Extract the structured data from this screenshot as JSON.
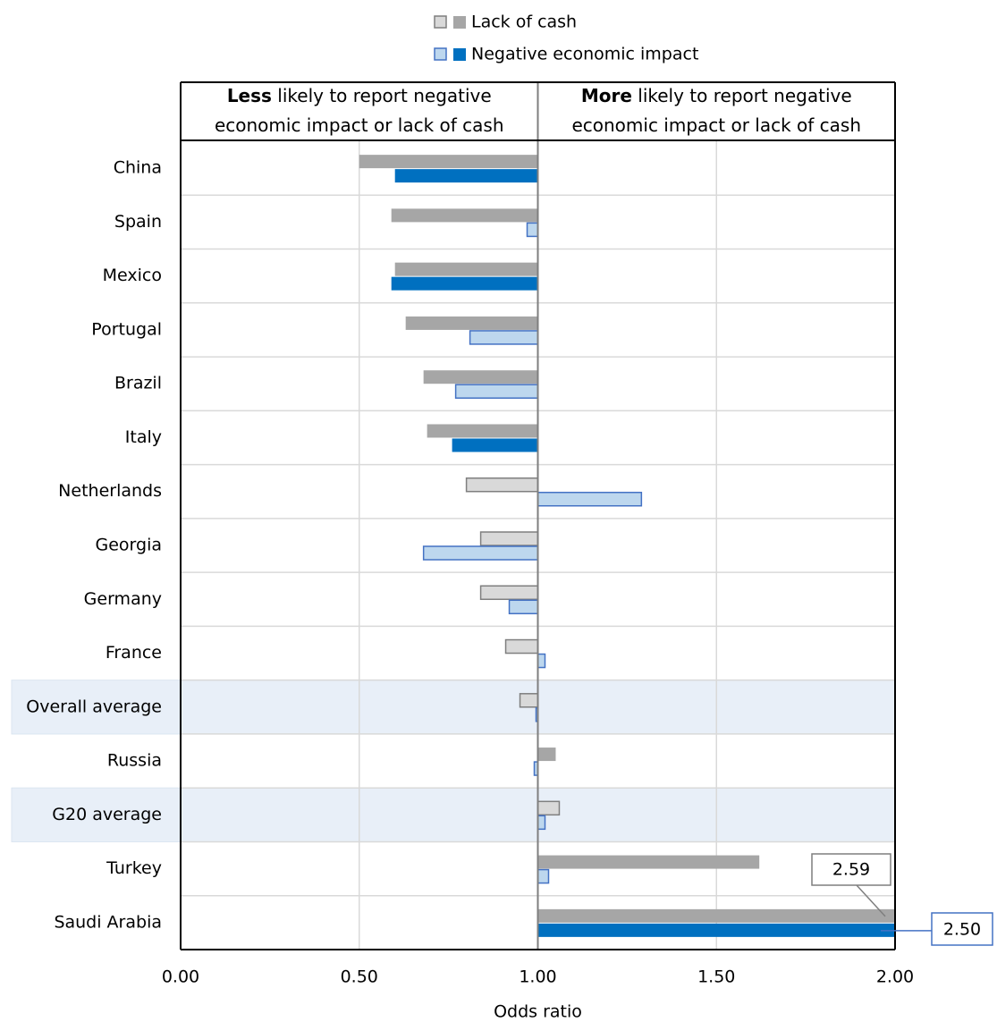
{
  "chart_data": {
    "type": "bar",
    "orientation": "horizontal",
    "x_label": "Odds ratio",
    "left_header": {
      "emphasis": "Less",
      "lines": [
        " likely to report negative",
        "economic impact or lack of cash"
      ]
    },
    "right_header": {
      "emphasis": "More",
      "lines": [
        " likely to report negative",
        "economic impact or lack of cash"
      ]
    },
    "categories": [
      "China",
      "Spain",
      "Mexico",
      "Portugal",
      "Brazil",
      "Italy",
      "Netherlands",
      "Georgia",
      "Germany",
      "France",
      "Overall average",
      "Russia",
      "G20 average",
      "Turkey",
      "Saudi Arabia"
    ],
    "highlighted": [
      false,
      false,
      false,
      false,
      false,
      false,
      false,
      false,
      false,
      false,
      true,
      false,
      true,
      false,
      false
    ],
    "base": 1,
    "xlim": [
      0,
      2
    ],
    "xticks": [
      {
        "value": 0,
        "label": "0.00"
      },
      {
        "value": 0.5,
        "label": "0.50"
      },
      {
        "value": 1,
        "label": "1.00"
      },
      {
        "value": 1.5,
        "label": "1.50"
      },
      {
        "value": 2,
        "label": "2.00"
      }
    ],
    "grid": true,
    "legend": "top",
    "series": [
      {
        "name": "Lack of cash",
        "color": "#a6a6a6",
        "light_color": "#d9d9d9",
        "edge_color": "#7f7f7f",
        "values": [
          0.5,
          0.59,
          0.6,
          0.63,
          0.68,
          0.69,
          0.8,
          0.84,
          0.84,
          0.91,
          0.95,
          1.05,
          1.06,
          1.62,
          2.59
        ],
        "filled": [
          true,
          true,
          true,
          true,
          true,
          true,
          false,
          false,
          false,
          false,
          false,
          true,
          false,
          true,
          true
        ],
        "value_labels": [
          null,
          null,
          null,
          null,
          null,
          null,
          null,
          null,
          null,
          null,
          null,
          null,
          null,
          null,
          "2.59"
        ]
      },
      {
        "name": "Negative economic impact",
        "color": "#0070c0",
        "light_color": "#bdd7ee",
        "edge_color": "#4472c4",
        "values": [
          0.6,
          0.97,
          0.59,
          0.81,
          0.77,
          0.76,
          1.29,
          0.68,
          0.92,
          1.02,
          0.995,
          0.99,
          1.02,
          1.03,
          2.5
        ],
        "filled": [
          true,
          false,
          true,
          false,
          false,
          true,
          false,
          false,
          false,
          false,
          false,
          false,
          false,
          false,
          true
        ],
        "value_labels": [
          null,
          null,
          null,
          null,
          null,
          null,
          null,
          null,
          null,
          null,
          null,
          null,
          null,
          null,
          "2.50"
        ]
      }
    ]
  }
}
